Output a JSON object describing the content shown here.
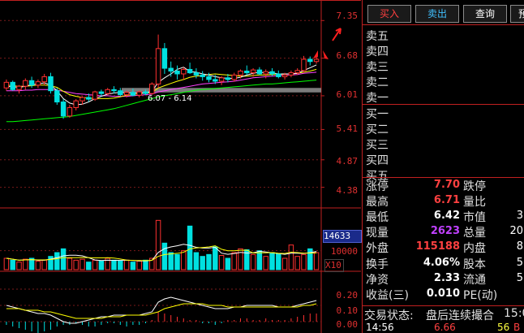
{
  "price_axis": [
    "7.35",
    "6.68",
    "6.01",
    "5.41",
    "4.87",
    "4.38"
  ],
  "range_label": "6.07 - 6.14",
  "volume_axis": {
    "current": "14633",
    "ten_thousand": "10000",
    "unit": "X10"
  },
  "macd_axis": [
    "0.20",
    "0.10",
    "0.00"
  ],
  "buttons": {
    "buy": "买入",
    "sell": "卖出",
    "query": "查询",
    "pre": "预"
  },
  "order_book": {
    "sell": [
      "卖五",
      "卖四",
      "卖三",
      "卖二",
      "卖一"
    ],
    "buy": [
      "买一",
      "买二",
      "买三",
      "买四",
      "买五"
    ]
  },
  "stats": [
    {
      "label": "涨停",
      "value": "7.70",
      "color": "#ff4040",
      "label2": "跌停",
      "value2": ""
    },
    {
      "label": "最高",
      "value": "6.71",
      "color": "#ff4040",
      "label2": "量比",
      "value2": ""
    },
    {
      "label": "最低",
      "value": "6.42",
      "color": "#ffffff",
      "label2": "市值",
      "value2": "3"
    },
    {
      "label": "现量",
      "value": "2623",
      "color": "#c040ff",
      "label2": "总量",
      "value2": "20"
    },
    {
      "label": "外盘",
      "value": "115188",
      "color": "#ff4040",
      "label2": "内盘",
      "value2": "8"
    },
    {
      "label": "换手",
      "value": "4.06%",
      "color": "#ffffff",
      "label2": "股本",
      "value2": "5"
    },
    {
      "label": "净资",
      "value": "2.33",
      "color": "#ffffff",
      "label2": "流通",
      "value2": "5"
    },
    {
      "label": "收益(三)",
      "value": "0.010",
      "color": "#ffffff",
      "label2": "PE(动)",
      "value2": ""
    }
  ],
  "trade_status": {
    "label": "交易状态:",
    "value": "盘后连续撮合",
    "time": "15:0"
  },
  "tick": {
    "time": "14:56",
    "price": "6.66",
    "vol": "56",
    "extra": "B"
  },
  "colors": {
    "up": "#ff3030",
    "down": "#00e0e0",
    "ma5": "#ffffff",
    "ma10": "#ffff00",
    "ma20": "#ff40ff",
    "ma60": "#00ff00"
  },
  "chart_data": {
    "type": "candlestick",
    "price_ylim": [
      4.1,
      7.6
    ],
    "candles": [
      [
        6.15,
        6.3,
        6.1,
        6.25
      ],
      [
        6.25,
        6.28,
        6.1,
        6.12
      ],
      [
        6.12,
        6.2,
        6.05,
        6.18
      ],
      [
        6.18,
        6.32,
        6.12,
        6.28
      ],
      [
        6.28,
        6.35,
        6.15,
        6.2
      ],
      [
        6.2,
        6.3,
        6.15,
        6.26
      ],
      [
        6.26,
        6.4,
        6.2,
        6.35
      ],
      [
        6.35,
        6.42,
        6.05,
        6.1
      ],
      [
        6.1,
        6.15,
        5.85,
        5.9
      ],
      [
        5.9,
        5.95,
        5.6,
        5.65
      ],
      [
        5.65,
        5.85,
        5.62,
        5.8
      ],
      [
        5.8,
        5.95,
        5.75,
        5.92
      ],
      [
        5.92,
        6.0,
        5.85,
        5.98
      ],
      [
        5.98,
        6.05,
        5.9,
        5.95
      ],
      [
        5.95,
        6.1,
        5.92,
        6.08
      ],
      [
        6.08,
        6.12,
        6.0,
        6.05
      ],
      [
        6.05,
        6.15,
        6.02,
        6.12
      ],
      [
        6.12,
        6.18,
        6.05,
        6.1
      ],
      [
        6.1,
        6.15,
        6.0,
        6.03
      ],
      [
        6.03,
        6.1,
        5.98,
        6.07
      ],
      [
        6.07,
        6.14,
        6.0,
        6.02
      ],
      [
        6.02,
        6.1,
        5.98,
        6.08
      ],
      [
        6.08,
        6.12,
        6.02,
        6.05
      ],
      [
        6.05,
        6.25,
        6.03,
        6.22
      ],
      [
        6.22,
        7.1,
        6.15,
        6.85
      ],
      [
        6.85,
        6.95,
        6.4,
        6.5
      ],
      [
        6.5,
        6.62,
        6.35,
        6.45
      ],
      [
        6.45,
        6.55,
        6.3,
        6.4
      ],
      [
        6.4,
        6.52,
        6.3,
        6.48
      ],
      [
        6.48,
        6.6,
        6.4,
        6.42
      ],
      [
        6.42,
        6.5,
        6.32,
        6.38
      ],
      [
        6.38,
        6.45,
        6.28,
        6.35
      ],
      [
        6.35,
        6.42,
        6.25,
        6.3
      ],
      [
        6.3,
        6.38,
        6.22,
        6.27
      ],
      [
        6.27,
        6.36,
        6.2,
        6.33
      ],
      [
        6.33,
        6.4,
        6.25,
        6.3
      ],
      [
        6.3,
        6.42,
        6.26,
        6.38
      ],
      [
        6.38,
        6.48,
        6.32,
        6.45
      ],
      [
        6.45,
        6.55,
        6.38,
        6.42
      ],
      [
        6.42,
        6.5,
        6.35,
        6.47
      ],
      [
        6.47,
        6.52,
        6.38,
        6.4
      ],
      [
        6.4,
        6.48,
        6.32,
        6.44
      ],
      [
        6.44,
        6.5,
        6.36,
        6.4
      ],
      [
        6.4,
        6.46,
        6.32,
        6.35
      ],
      [
        6.35,
        6.42,
        6.3,
        6.38
      ],
      [
        6.38,
        6.46,
        6.34,
        6.42
      ],
      [
        6.42,
        6.5,
        6.38,
        6.46
      ],
      [
        6.46,
        6.72,
        6.42,
        6.66
      ],
      [
        6.66,
        6.71,
        6.55,
        6.62
      ],
      [
        6.62,
        6.7,
        6.58,
        6.66
      ]
    ],
    "ma5": [
      6.18,
      6.17,
      6.16,
      6.18,
      6.21,
      6.22,
      6.24,
      6.2,
      6.1,
      5.96,
      5.88,
      5.85,
      5.86,
      5.9,
      5.96,
      6.0,
      6.04,
      6.06,
      6.07,
      6.06,
      6.06,
      6.06,
      6.06,
      6.09,
      6.25,
      6.33,
      6.4,
      6.48,
      6.52,
      6.44,
      6.43,
      6.4,
      6.38,
      6.35,
      6.33,
      6.32,
      6.32,
      6.34,
      6.38,
      6.41,
      6.43,
      6.42,
      6.42,
      6.4,
      6.4,
      6.4,
      6.41,
      6.46,
      6.51,
      6.56
    ],
    "ma10": [
      6.2,
      6.19,
      6.18,
      6.18,
      6.19,
      6.2,
      6.2,
      6.19,
      6.16,
      6.09,
      6.03,
      6.0,
      5.98,
      5.97,
      5.96,
      5.96,
      5.96,
      5.97,
      5.99,
      6.02,
      6.03,
      6.05,
      6.06,
      6.07,
      6.15,
      6.19,
      6.23,
      6.27,
      6.3,
      6.34,
      6.36,
      6.37,
      6.39,
      6.4,
      6.39,
      6.38,
      6.37,
      6.36,
      6.36,
      6.37,
      6.38,
      6.38,
      6.39,
      6.39,
      6.4,
      6.4,
      6.41,
      6.43,
      6.45,
      6.48
    ],
    "ma20": [
      6.1,
      6.1,
      6.1,
      6.11,
      6.11,
      6.12,
      6.12,
      6.12,
      6.11,
      6.09,
      6.07,
      6.05,
      6.04,
      6.03,
      6.02,
      6.01,
      6.01,
      6.0,
      6.0,
      6.0,
      6.01,
      6.02,
      6.03,
      6.04,
      6.08,
      6.1,
      6.12,
      6.14,
      6.16,
      6.18,
      6.2,
      6.22,
      6.23,
      6.24,
      6.25,
      6.26,
      6.27,
      6.29,
      6.31,
      6.33,
      6.34,
      6.35,
      6.36,
      6.37,
      6.38,
      6.38,
      6.39,
      6.41,
      6.42,
      6.43
    ],
    "ma60": [
      5.55,
      5.55,
      5.56,
      5.57,
      5.58,
      5.59,
      5.6,
      5.61,
      5.62,
      5.63,
      5.64,
      5.66,
      5.68,
      5.7,
      5.72,
      5.74,
      5.76,
      5.78,
      5.81,
      5.84,
      5.87,
      5.9,
      5.93,
      5.96,
      5.99,
      6.01,
      6.03,
      6.05,
      6.07,
      6.09,
      6.11,
      6.12,
      6.13,
      6.14,
      6.15,
      6.16,
      6.17,
      6.18,
      6.19,
      6.2,
      6.21,
      6.22,
      6.22,
      6.23,
      6.24,
      6.25,
      6.26,
      6.27,
      6.28,
      6.29
    ],
    "volume": [
      6000,
      5000,
      4000,
      5500,
      6000,
      4500,
      5000,
      7000,
      9000,
      11000,
      6000,
      5000,
      5500,
      4000,
      5000,
      4500,
      6000,
      5000,
      4500,
      5000,
      4000,
      4500,
      5000,
      6000,
      26000,
      14000,
      9000,
      8000,
      10000,
      23000,
      9000,
      7000,
      8000,
      12000,
      7500,
      6000,
      9000,
      11000,
      10500,
      8000,
      10000,
      7000,
      9000,
      8500,
      6000,
      13000,
      7000,
      8000,
      11000,
      9000
    ],
    "volume_ylim": [
      0,
      30000
    ],
    "macd_hist": [
      -0.02,
      -0.03,
      -0.04,
      -0.05,
      -0.06,
      -0.07,
      -0.06,
      -0.05,
      -0.03,
      -0.02,
      -0.02,
      -0.01,
      -0.02,
      -0.03,
      -0.03,
      -0.02,
      -0.01,
      -0.01,
      -0.02,
      -0.03,
      -0.02,
      -0.02,
      -0.01,
      0.01,
      0.06,
      0.05,
      0.04,
      0.03,
      0.02,
      0.01,
      0.01,
      -0.01,
      -0.01,
      -0.02,
      -0.01,
      0.01,
      0.01,
      0.02,
      0.02,
      0.01,
      0.01,
      0.02,
      0.01,
      0.01,
      0.01,
      0.02,
      0.03,
      0.04,
      0.05,
      0.05
    ],
    "dif": [
      0.1,
      0.09,
      0.08,
      0.07,
      0.06,
      0.05,
      0.05,
      0.04,
      0.02,
      0.0,
      -0.01,
      -0.01,
      0.0,
      0.01,
      0.02,
      0.03,
      0.03,
      0.04,
      0.04,
      0.04,
      0.04,
      0.04,
      0.05,
      0.06,
      0.12,
      0.14,
      0.15,
      0.14,
      0.13,
      0.12,
      0.11,
      0.1,
      0.09,
      0.08,
      0.08,
      0.08,
      0.09,
      0.09,
      0.1,
      0.1,
      0.1,
      0.1,
      0.1,
      0.09,
      0.09,
      0.09,
      0.1,
      0.11,
      0.12,
      0.13
    ],
    "dea": [
      0.08,
      0.08,
      0.08,
      0.07,
      0.07,
      0.07,
      0.06,
      0.06,
      0.05,
      0.04,
      0.03,
      0.02,
      0.02,
      0.02,
      0.02,
      0.02,
      0.03,
      0.03,
      0.03,
      0.04,
      0.04,
      0.04,
      0.04,
      0.05,
      0.06,
      0.08,
      0.09,
      0.1,
      0.11,
      0.11,
      0.11,
      0.11,
      0.1,
      0.1,
      0.1,
      0.09,
      0.09,
      0.09,
      0.09,
      0.09,
      0.09,
      0.09,
      0.09,
      0.09,
      0.09,
      0.09,
      0.09,
      0.1,
      0.1,
      0.11
    ],
    "macd_ylim": [
      -0.06,
      0.28
    ]
  }
}
